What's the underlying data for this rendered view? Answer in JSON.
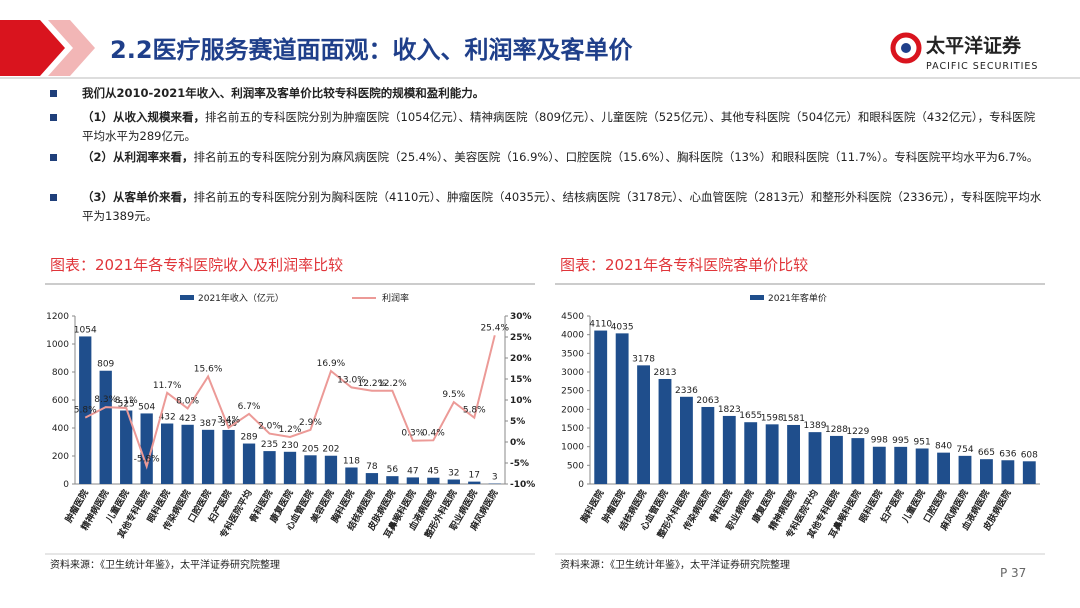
{
  "header": {
    "title": "2.2医疗服务赛道面面观：收入、利润率及客单价",
    "logo": "太平洋证券",
    "logo_sub": "PACIFIC SECURITIES"
  },
  "bullets": [
    {
      "bold": "我们从2010-2021年收入、利润率及客单价比较专科医院的规模和盈利能力。"
    },
    {
      "bold": "（1）从收入规模来看，",
      "text": "排名前五的专科医院分别为肿瘤医院（1054亿元）、精神病医院（809亿元）、儿童医院（525亿元）、其他专科医院（504亿元）和眼科医院（432亿元），专科医院平均水平为289亿元。"
    },
    {
      "bold": "（2）从利润率来看，",
      "text": "排名前五的专科医院分别为麻风病医院（25.4%）、美容医院（16.9%）、口腔医院（15.6%）、胸科医院（13%）和眼科医院（11.7%）。专科医院平均水平为6.7%。"
    },
    {
      "bold": "（3）从客单价来看，",
      "text": "排名前五的专科医院分别为胸科医院（4110元）、肿瘤医院（4035元）、结核病医院（3178元）、心血管医院（2813元）和整形外科医院（2336元），专科医院平均水平为1389元。"
    }
  ],
  "chart_data": [
    {
      "type": "bar",
      "title": "图表：2021年各专科医院收入及利润率比较",
      "categories": [
        "肿瘤医院",
        "精神病医院",
        "儿童医院",
        "其他专科医院",
        "眼科医院",
        "传染病医院",
        "口腔医院",
        "妇产医院",
        "专科医院平均",
        "骨科医院",
        "康复医院",
        "心血管医院",
        "美容医院",
        "胸科医院",
        "结核病医院",
        "皮肤病医院",
        "耳鼻喉科医院",
        "血液病医院",
        "整形外科医院",
        "职业病医院",
        "麻风病医院"
      ],
      "series": [
        {
          "name": "2021年收入（亿元）",
          "color": "#1f4e8c",
          "values": [
            1054,
            809,
            525,
            504,
            432,
            423,
            387,
            386,
            289,
            235,
            230,
            205,
            202,
            118,
            78,
            56,
            47,
            45,
            32,
            17,
            3
          ]
        },
        {
          "name": "利润率",
          "color": "#ec9a97",
          "axis": "y2",
          "values": [
            5.8,
            8.3,
            8.1,
            -5.8,
            11.7,
            8.0,
            15.6,
            3.4,
            6.7,
            2.0,
            1.2,
            2.9,
            16.9,
            13.0,
            12.2,
            12.2,
            0.3,
            0.4,
            9.5,
            5.8,
            25.4
          ],
          "value_labels": [
            "5.8%",
            "8.3%",
            "8.1%",
            "-5.8%",
            "11.7%",
            "8.0%",
            "15.6%",
            "3.4%",
            "6.7%",
            "2.0%",
            "1.2%",
            "2.9%",
            "16.9%",
            "13.0%",
            "12.2%",
            "12.2%",
            "0.3%",
            "0.4%",
            "9.5%",
            "5.8%",
            "25.4%"
          ]
        }
      ],
      "ylim": [
        0,
        1200
      ],
      "yticks": [
        0,
        200,
        400,
        600,
        800,
        1000,
        1200
      ],
      "y2lim": [
        -10,
        30
      ],
      "y2ticks": [
        {
          "value": -10,
          "label": "-10%"
        },
        {
          "value": -5,
          "label": "-5%"
        },
        {
          "value": 0,
          "label": "0%"
        },
        {
          "value": 5,
          "label": "5%"
        },
        {
          "value": 10,
          "label": "10%"
        },
        {
          "value": 15,
          "label": "15%"
        },
        {
          "value": 20,
          "label": "20%"
        },
        {
          "value": 25,
          "label": "25%"
        },
        {
          "value": 30,
          "label": "30%"
        }
      ],
      "source": "资料来源：《卫生统计年鉴》，太平洋证券研究院整理"
    },
    {
      "type": "bar",
      "title": "图表：2021年各专科医院客单价比较",
      "categories": [
        "胸科医院",
        "肿瘤医院",
        "结核病医院",
        "心血管医院",
        "整形外科医院",
        "传染病医院",
        "骨科医院",
        "职业病医院",
        "康复医院",
        "精神病医院",
        "专科医院平均",
        "其他专科医院",
        "耳鼻喉科医院",
        "眼科医院",
        "妇产医院",
        "儿童医院",
        "口腔医院",
        "麻风病医院",
        "血液病医院",
        "皮肤病医院",
        null
      ],
      "series": [
        {
          "name": "2021年客单价",
          "color": "#1f4e8c",
          "values": [
            4110,
            4035,
            3178,
            2813,
            2336,
            2063,
            1823,
            1655,
            1598,
            1581,
            1389,
            1288,
            1229,
            998,
            995,
            951,
            840,
            754,
            665,
            636,
            608
          ]
        }
      ],
      "ylim": [
        0,
        4500
      ],
      "yticks": [
        0,
        500,
        1000,
        1500,
        2000,
        2500,
        3000,
        3500,
        4000,
        4500
      ],
      "source": "资料来源：《卫生统计年鉴》，太平洋证券研究院整理"
    }
  ],
  "page": "P 37"
}
